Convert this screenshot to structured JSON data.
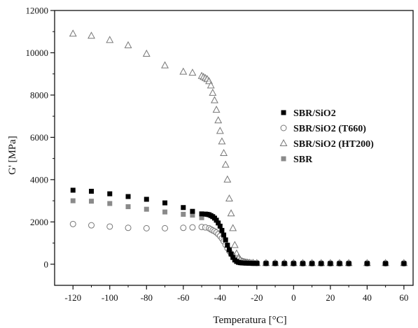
{
  "colors": {
    "axis": "#111111",
    "filled_square": "#000000",
    "gray_square": "#8a8a8a",
    "open_marker": "#777777"
  },
  "chart_data": {
    "type": "scatter",
    "xlabel": "Temperatura [°C]",
    "ylabel": "G' [MPa]",
    "xlim": [
      -130,
      65
    ],
    "ylim": [
      -1000,
      12000
    ],
    "xticks": [
      -120,
      -100,
      -80,
      -60,
      -40,
      -20,
      0,
      20,
      40,
      60
    ],
    "yticks": [
      0,
      2000,
      4000,
      6000,
      8000,
      10000,
      12000
    ],
    "grid": false,
    "legend_position": "right",
    "series": [
      {
        "name": "SBR/SiO2",
        "marker": "filled-square",
        "color": "#000000",
        "points": [
          [
            -120,
            3500
          ],
          [
            -110,
            3450
          ],
          [
            -100,
            3330
          ],
          [
            -90,
            3200
          ],
          [
            -80,
            3070
          ],
          [
            -70,
            2900
          ],
          [
            -60,
            2680
          ],
          [
            -55,
            2500
          ],
          [
            -50,
            2380
          ],
          [
            -48,
            2370
          ],
          [
            -47,
            2360
          ],
          [
            -46,
            2340
          ],
          [
            -45,
            2300
          ],
          [
            -44,
            2250
          ],
          [
            -43,
            2180
          ],
          [
            -42,
            2080
          ],
          [
            -41,
            1950
          ],
          [
            -40,
            1800
          ],
          [
            -39,
            1600
          ],
          [
            -38,
            1380
          ],
          [
            -37,
            1150
          ],
          [
            -36,
            900
          ],
          [
            -35,
            680
          ],
          [
            -34,
            480
          ],
          [
            -33,
            320
          ],
          [
            -32,
            200
          ],
          [
            -31,
            130
          ],
          [
            -30,
            90
          ],
          [
            -29,
            70
          ],
          [
            -28,
            60
          ],
          [
            -27,
            55
          ],
          [
            -26,
            50
          ],
          [
            -24,
            45
          ],
          [
            -22,
            40
          ],
          [
            -20,
            38
          ],
          [
            -15,
            35
          ],
          [
            -10,
            35
          ],
          [
            -5,
            33
          ],
          [
            0,
            32
          ],
          [
            5,
            30
          ],
          [
            10,
            30
          ],
          [
            15,
            30
          ],
          [
            20,
            30
          ],
          [
            25,
            30
          ],
          [
            30,
            30
          ],
          [
            40,
            30
          ],
          [
            50,
            30
          ],
          [
            60,
            30
          ]
        ]
      },
      {
        "name": "SBR/SiO2 (T660)",
        "marker": "open-circle",
        "color": "#777777",
        "points": [
          [
            -120,
            1900
          ],
          [
            -110,
            1840
          ],
          [
            -100,
            1780
          ],
          [
            -90,
            1720
          ],
          [
            -80,
            1700
          ],
          [
            -70,
            1700
          ],
          [
            -60,
            1720
          ],
          [
            -55,
            1740
          ],
          [
            -50,
            1760
          ],
          [
            -48,
            1740
          ],
          [
            -46,
            1700
          ],
          [
            -45,
            1650
          ],
          [
            -44,
            1600
          ],
          [
            -43,
            1560
          ],
          [
            -42,
            1500
          ],
          [
            -41,
            1420
          ],
          [
            -40,
            1330
          ],
          [
            -39,
            1220
          ],
          [
            -38,
            1080
          ],
          [
            -37,
            920
          ],
          [
            -36,
            760
          ],
          [
            -35,
            620
          ],
          [
            -34,
            500
          ],
          [
            -33,
            400
          ],
          [
            -32,
            320
          ],
          [
            -31,
            260
          ],
          [
            -30,
            210
          ],
          [
            -29,
            170
          ],
          [
            -28,
            140
          ],
          [
            -27,
            120
          ],
          [
            -26,
            100
          ],
          [
            -25,
            85
          ],
          [
            -24,
            75
          ],
          [
            -23,
            65
          ],
          [
            -22,
            60
          ],
          [
            -20,
            55
          ],
          [
            -15,
            50
          ],
          [
            -10,
            45
          ],
          [
            -5,
            42
          ],
          [
            0,
            40
          ],
          [
            5,
            40
          ],
          [
            10,
            40
          ],
          [
            15,
            40
          ],
          [
            20,
            40
          ],
          [
            25,
            40
          ],
          [
            30,
            40
          ],
          [
            40,
            40
          ],
          [
            50,
            40
          ],
          [
            60,
            40
          ]
        ]
      },
      {
        "name": "SBR/SiO2 (HT200)",
        "marker": "open-triangle",
        "color": "#777777",
        "points": [
          [
            -120,
            10900
          ],
          [
            -110,
            10800
          ],
          [
            -100,
            10600
          ],
          [
            -90,
            10350
          ],
          [
            -80,
            9950
          ],
          [
            -70,
            9400
          ],
          [
            -60,
            9100
          ],
          [
            -55,
            9050
          ],
          [
            -50,
            8900
          ],
          [
            -49,
            8850
          ],
          [
            -48,
            8800
          ],
          [
            -47,
            8750
          ],
          [
            -46,
            8650
          ],
          [
            -45,
            8450
          ],
          [
            -44,
            8100
          ],
          [
            -43,
            7750
          ],
          [
            -42,
            7300
          ],
          [
            -41,
            6800
          ],
          [
            -40,
            6300
          ],
          [
            -39,
            5800
          ],
          [
            -38,
            5250
          ],
          [
            -37,
            4700
          ],
          [
            -36,
            4000
          ],
          [
            -35,
            3100
          ],
          [
            -34,
            2400
          ],
          [
            -33,
            1700
          ],
          [
            -32,
            900
          ],
          [
            -31,
            500
          ],
          [
            -30,
            300
          ],
          [
            -29,
            200
          ],
          [
            -28,
            130
          ],
          [
            -27,
            100
          ],
          [
            -26,
            80
          ],
          [
            -25,
            70
          ],
          [
            -24,
            60
          ],
          [
            -22,
            55
          ],
          [
            -20,
            50
          ],
          [
            -15,
            50
          ],
          [
            -10,
            50
          ],
          [
            -5,
            50
          ],
          [
            0,
            50
          ],
          [
            5,
            50
          ],
          [
            10,
            50
          ],
          [
            15,
            50
          ],
          [
            20,
            50
          ],
          [
            25,
            50
          ],
          [
            30,
            50
          ],
          [
            40,
            50
          ],
          [
            50,
            50
          ],
          [
            60,
            50
          ]
        ]
      },
      {
        "name": "SBR",
        "marker": "gray-square",
        "color": "#8a8a8a",
        "points": [
          [
            -120,
            3000
          ],
          [
            -110,
            2980
          ],
          [
            -100,
            2870
          ],
          [
            -90,
            2720
          ],
          [
            -80,
            2600
          ],
          [
            -70,
            2470
          ],
          [
            -60,
            2360
          ],
          [
            -55,
            2320
          ],
          [
            -50,
            2200
          ]
        ]
      }
    ]
  }
}
